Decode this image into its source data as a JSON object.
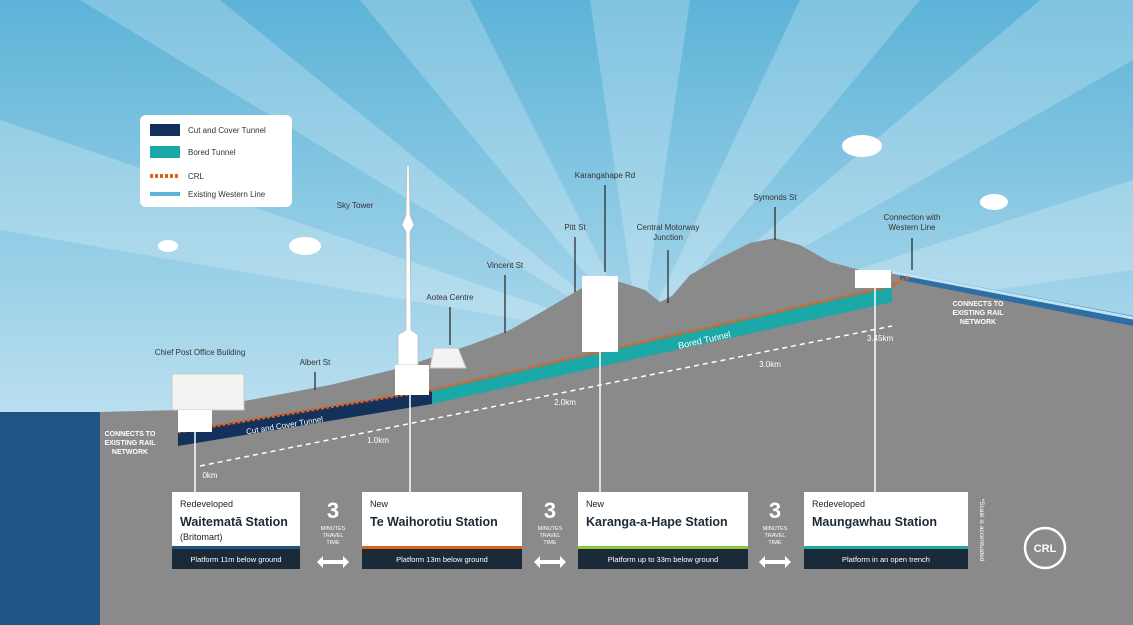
{
  "legend": [
    "Cut and Cover Tunnel",
    "Bored Tunnel",
    "CRL",
    "Existing Western Line"
  ],
  "landmarks": [
    {
      "lines": [
        "Sky Tower"
      ]
    },
    {
      "lines": [
        "Karangahape Rd"
      ]
    },
    {
      "lines": [
        "Pitt St"
      ]
    },
    {
      "lines": [
        "Central Motorway",
        "Junction"
      ]
    },
    {
      "lines": [
        "Symonds St"
      ]
    },
    {
      "lines": [
        "Connection with",
        "Western Line"
      ]
    },
    {
      "lines": [
        "Vincent St"
      ]
    },
    {
      "lines": [
        "Aotea Centre"
      ]
    },
    {
      "lines": [
        "Chief Post Office Building"
      ]
    },
    {
      "lines": [
        "Albert St"
      ]
    }
  ],
  "tunnel_labels": [
    "Cut and Cover Tunnel",
    "Bored Tunnel"
  ],
  "distances": [
    "0km",
    "1.0km",
    "2.0km",
    "3.0km",
    "3.45km"
  ],
  "connects": [
    [
      "CONNECTS TO",
      "EXISTING RAIL",
      "NETWORK"
    ],
    [
      "CONNECTS TO",
      "EXISTING RAIL",
      "NETWORK"
    ]
  ],
  "stations": [
    {
      "status": "Redeveloped",
      "name": "Waitematā Station",
      "note": "(Britomart)",
      "platform": "Platform 11m below ground"
    },
    {
      "status": "New",
      "name": "Te Waihorotiu Station",
      "platform": "Platform 13m below ground"
    },
    {
      "status": "New",
      "name": "Karanga-a-Hape Station",
      "platform": "Platform up to 33m below ground"
    },
    {
      "status": "Redeveloped",
      "name": "Maungawhau Station",
      "platform": "Platform in an open trench"
    }
  ],
  "travel": [
    {
      "minutes": 3,
      "lines": [
        "MINUTES",
        "TRAVEL",
        "TIME"
      ]
    },
    {
      "minutes": 3,
      "lines": [
        "MINUTES",
        "TRAVEL",
        "TIME"
      ]
    },
    {
      "minutes": 3,
      "lines": [
        "MINUTES",
        "TRAVEL",
        "TIME"
      ]
    }
  ],
  "scale_note": "*Scale is accentuated",
  "logo": "CRL"
}
